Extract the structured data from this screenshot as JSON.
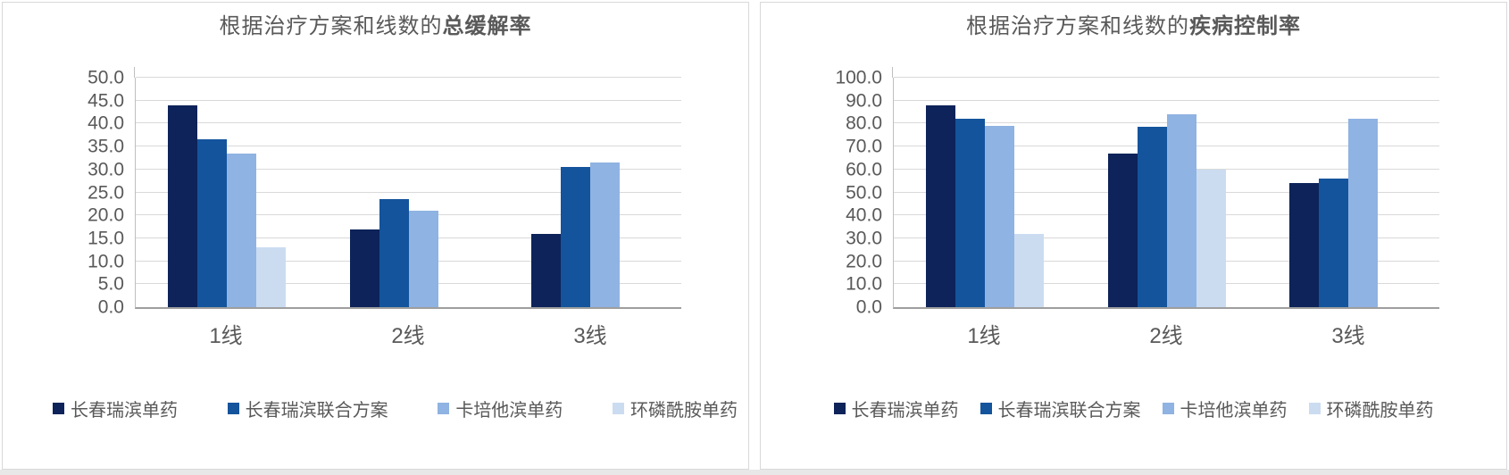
{
  "colors": {
    "title_text": "#595959",
    "axis_text": "#595959",
    "gridline": "#d9d9d9",
    "axis_line": "#9e9e9e",
    "plot_border": "#bfbfbf",
    "panel_border": "#d9d9d9"
  },
  "chart_data": [
    {
      "type": "bar",
      "title": {
        "prefix": "根据治疗方案和线数的",
        "bold": "总缓解率"
      },
      "categories": [
        "1线",
        "2线",
        "3线"
      ],
      "series": [
        {
          "name": "长春瑞滨单药",
          "color": "#0d2359",
          "values": [
            44.0,
            17.0,
            16.0
          ]
        },
        {
          "name": "长春瑞滨联合方案",
          "color": "#14549c",
          "values": [
            36.5,
            23.5,
            30.5
          ]
        },
        {
          "name": "卡培他滨单药",
          "color": "#8fb3e2",
          "values": [
            33.5,
            21.0,
            31.5
          ]
        },
        {
          "name": "环磷酰胺单药",
          "color": "#cbdcf1",
          "values": [
            13.0,
            null,
            null
          ]
        }
      ],
      "ylim": [
        0,
        50
      ],
      "ytick_step": 5,
      "ytick_labels": [
        "0.0",
        "5.0",
        "10.0",
        "15.0",
        "20.0",
        "25.0",
        "30.0",
        "35.0",
        "40.0",
        "45.0",
        "50.0"
      ],
      "xlabel": "",
      "ylabel": "",
      "grid": true,
      "legend_position": "bottom"
    },
    {
      "type": "bar",
      "title": {
        "prefix": "根据治疗方案和线数的",
        "bold": "疾病控制率"
      },
      "categories": [
        "1线",
        "2线",
        "3线"
      ],
      "series": [
        {
          "name": "长春瑞滨单药",
          "color": "#0d2359",
          "values": [
            88.0,
            67.0,
            54.0
          ]
        },
        {
          "name": "长春瑞滨联合方案",
          "color": "#14549c",
          "values": [
            82.0,
            78.5,
            56.0
          ]
        },
        {
          "name": "卡培他滨单药",
          "color": "#8fb3e2",
          "values": [
            79.0,
            84.0,
            82.0
          ]
        },
        {
          "name": "环磷酰胺单药",
          "color": "#cbdcf1",
          "values": [
            32.0,
            60.0,
            null
          ]
        }
      ],
      "ylim": [
        0,
        100
      ],
      "ytick_step": 10,
      "ytick_labels": [
        "0.0",
        "10.0",
        "20.0",
        "30.0",
        "40.0",
        "50.0",
        "60.0",
        "70.0",
        "80.0",
        "90.0",
        "100.0"
      ],
      "xlabel": "",
      "ylabel": "",
      "grid": true,
      "legend_position": "bottom"
    }
  ]
}
